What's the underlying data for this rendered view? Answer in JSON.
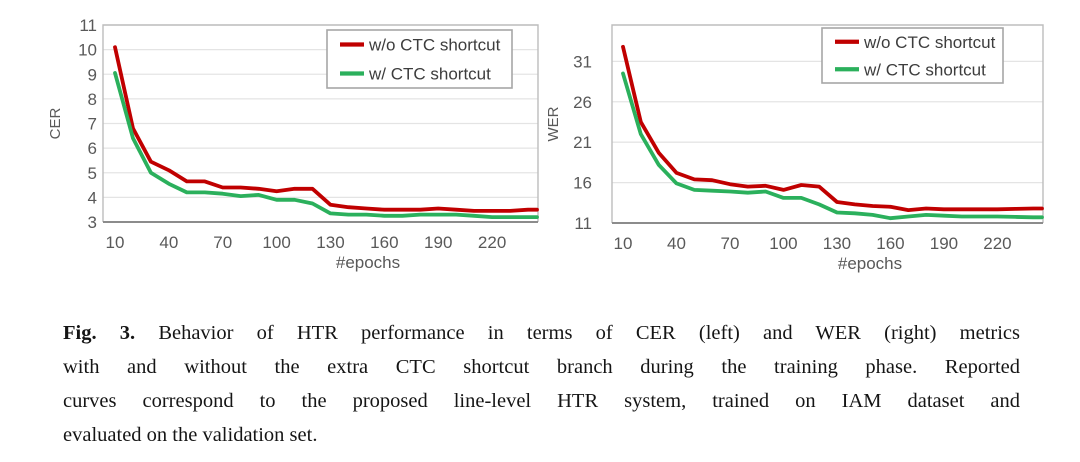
{
  "figure": {
    "caption_label": "Fig. 3.",
    "caption_lines": [
      "Behavior of HTR performance in terms of CER (left) and WER (right) metrics",
      "with and without the extra CTC shortcut branch during the training phase. Reported",
      "curves correspond to the proposed line-level HTR system, trained on IAM dataset and",
      "evaluated on the validation set."
    ]
  },
  "colors": {
    "red": "#c00000",
    "green": "#2bb05c",
    "grid": "#e4e4e4",
    "frame": "#bdbdbd",
    "axis_line": "#8c8c8c",
    "tick_text": "#595959",
    "legend_border": "#a6a6a6",
    "legend_text": "#3d3d3d"
  },
  "chart_data": [
    {
      "type": "line",
      "title": "",
      "ylabel": "CER",
      "xlabel": "#epochs",
      "grid": true,
      "legend_position": "top-right",
      "ylim": [
        3,
        11
      ],
      "y_ticks": [
        3,
        4,
        5,
        6,
        7,
        8,
        9,
        10,
        11
      ],
      "x_ticks": [
        10,
        40,
        70,
        100,
        130,
        160,
        190,
        220
      ],
      "x": [
        10,
        20,
        30,
        40,
        50,
        60,
        70,
        80,
        90,
        100,
        110,
        120,
        130,
        140,
        150,
        160,
        170,
        180,
        190,
        200,
        210,
        220,
        230,
        240,
        245
      ],
      "series": [
        {
          "name": "w/o CTC shortcut",
          "color": "red",
          "values": [
            10.1,
            6.8,
            5.45,
            5.1,
            4.65,
            4.65,
            4.4,
            4.4,
            4.35,
            4.25,
            4.35,
            4.35,
            3.7,
            3.6,
            3.55,
            3.5,
            3.5,
            3.5,
            3.55,
            3.5,
            3.45,
            3.45,
            3.45,
            3.5,
            3.5
          ]
        },
        {
          "name": "w/ CTC shortcut",
          "color": "green",
          "values": [
            9.05,
            6.4,
            5.0,
            4.55,
            4.2,
            4.2,
            4.15,
            4.05,
            4.1,
            3.9,
            3.9,
            3.75,
            3.35,
            3.3,
            3.3,
            3.25,
            3.25,
            3.3,
            3.3,
            3.3,
            3.25,
            3.2,
            3.2,
            3.2,
            3.2
          ]
        }
      ]
    },
    {
      "type": "line",
      "title": "",
      "ylabel": "WER",
      "xlabel": "#epochs",
      "grid": true,
      "legend_position": "top-right",
      "ylim": [
        11,
        35.5
      ],
      "y_ticks": [
        11,
        16,
        21,
        26,
        31
      ],
      "x_ticks": [
        10,
        40,
        70,
        100,
        130,
        160,
        190,
        220
      ],
      "x": [
        10,
        20,
        30,
        40,
        50,
        60,
        70,
        80,
        90,
        100,
        110,
        120,
        130,
        140,
        150,
        160,
        170,
        180,
        190,
        200,
        210,
        220,
        230,
        240,
        245
      ],
      "series": [
        {
          "name": "w/o CTC shortcut",
          "color": "red",
          "values": [
            32.8,
            23.5,
            19.7,
            17.2,
            16.4,
            16.3,
            15.8,
            15.5,
            15.6,
            15.1,
            15.7,
            15.5,
            13.6,
            13.3,
            13.1,
            13.0,
            12.6,
            12.8,
            12.7,
            12.7,
            12.7,
            12.7,
            12.75,
            12.8,
            12.8
          ]
        },
        {
          "name": "w/ CTC shortcut",
          "color": "green",
          "values": [
            29.5,
            22.0,
            18.2,
            15.9,
            15.1,
            15.0,
            14.9,
            14.75,
            14.9,
            14.1,
            14.1,
            13.3,
            12.3,
            12.2,
            12.0,
            11.6,
            11.8,
            12.0,
            11.9,
            11.8,
            11.8,
            11.8,
            11.75,
            11.7,
            11.7
          ]
        }
      ]
    }
  ]
}
